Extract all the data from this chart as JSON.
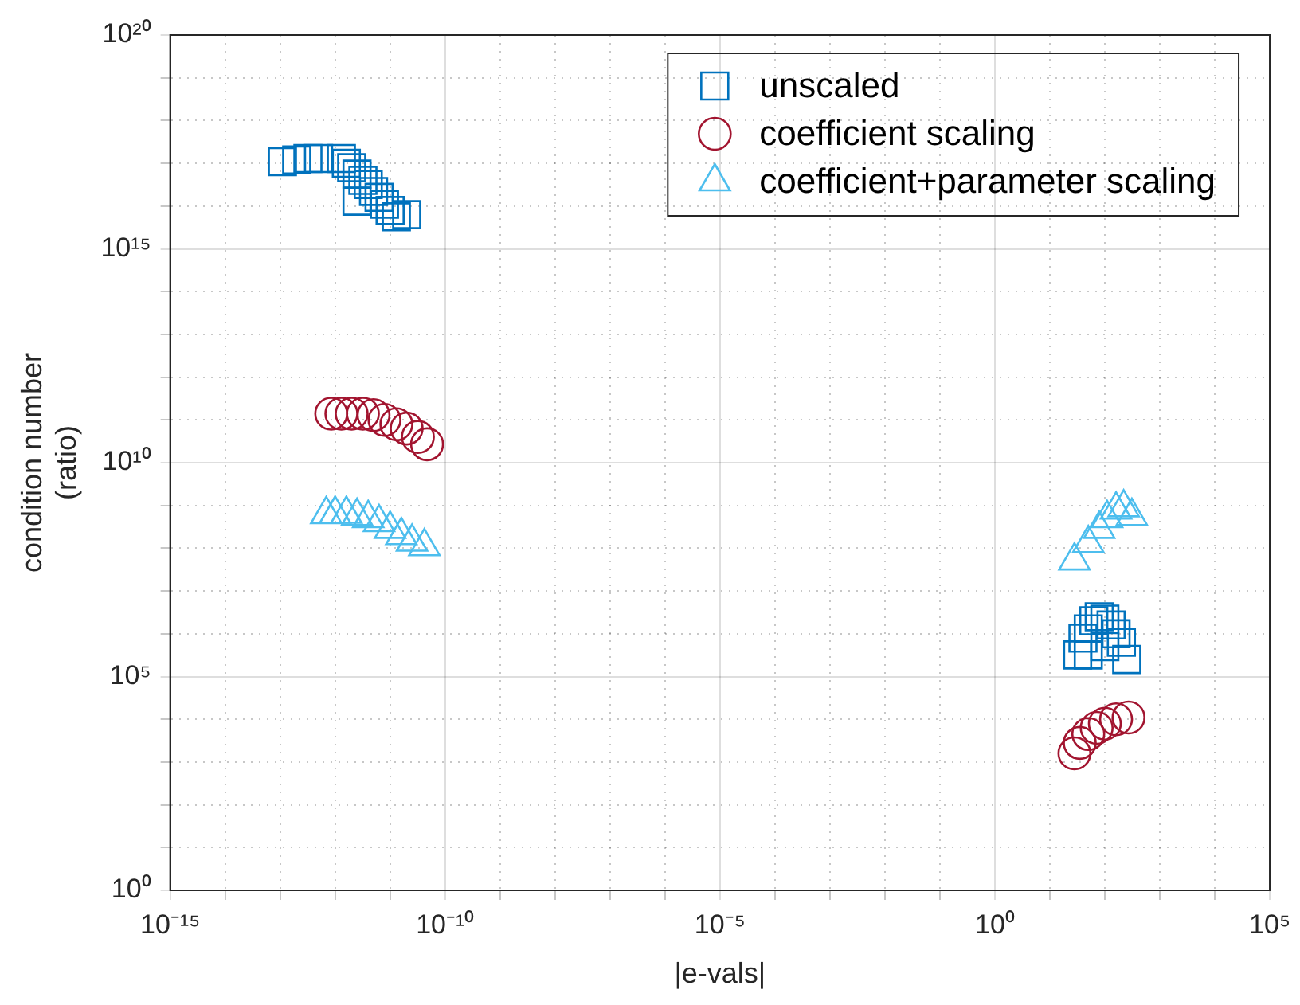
{
  "chart_data": {
    "type": "scatter",
    "xlabel": "|e-vals|",
    "ylabel": "condition number\n(ratio)",
    "log": "xy",
    "grid": true,
    "legend": "top right",
    "xlim": [
      1e-15,
      100000.0
    ],
    "ylim": [
      1,
      1e+20
    ],
    "xticks": [
      {
        "value": 1e-15,
        "label": "10⁻¹⁵"
      },
      {
        "value": 1e-14,
        "label": null
      },
      {
        "value": 1e-13,
        "label": null
      },
      {
        "value": 1e-12,
        "label": null
      },
      {
        "value": 1e-11,
        "label": null
      },
      {
        "value": 1e-10,
        "label": "10⁻¹⁰"
      },
      {
        "value": 1e-09,
        "label": null
      },
      {
        "value": 1e-08,
        "label": null
      },
      {
        "value": 1e-07,
        "label": null
      },
      {
        "value": 1e-06,
        "label": null
      },
      {
        "value": 1e-05,
        "label": "10⁻⁵"
      },
      {
        "value": 0.0001,
        "label": null
      },
      {
        "value": 0.001,
        "label": null
      },
      {
        "value": 0.01,
        "label": null
      },
      {
        "value": 0.1,
        "label": null
      },
      {
        "value": 1,
        "label": "10⁰"
      },
      {
        "value": 10,
        "label": null
      },
      {
        "value": 100,
        "label": null
      },
      {
        "value": 1000,
        "label": null
      },
      {
        "value": 10000,
        "label": null
      },
      {
        "value": 100000,
        "label": "10⁵"
      }
    ],
    "yticks": [
      {
        "value": 1,
        "label": "10⁰"
      },
      {
        "value": 10,
        "label": null
      },
      {
        "value": 100,
        "label": null
      },
      {
        "value": 1000,
        "label": null
      },
      {
        "value": 10000,
        "label": null
      },
      {
        "value": 100000,
        "label": "10⁵"
      },
      {
        "value": 1000000.0,
        "label": null
      },
      {
        "value": 10000000.0,
        "label": null
      },
      {
        "value": 100000000.0,
        "label": null
      },
      {
        "value": 1000000000.0,
        "label": null
      },
      {
        "value": 10000000000.0,
        "label": "10¹⁰"
      },
      {
        "value": 100000000000.0,
        "label": null
      },
      {
        "value": 1000000000000.0,
        "label": null
      },
      {
        "value": 10000000000000.0,
        "label": null
      },
      {
        "value": 100000000000000.0,
        "label": null
      },
      {
        "value": 1000000000000000.0,
        "label": "10¹⁵"
      },
      {
        "value": 1e+16,
        "label": null
      },
      {
        "value": 1e+17,
        "label": null
      },
      {
        "value": 1e+18,
        "label": null
      },
      {
        "value": 1e+19,
        "label": null
      },
      {
        "value": 1e+20,
        "label": "10²⁰"
      }
    ],
    "series": [
      {
        "name": "unscaled",
        "color": "#0072bd",
        "marker": "square",
        "x": [
          1.1e-13,
          2e-13,
          3.2e-13,
          5e-13,
          1.3e-12,
          1.6e-12,
          2e-12,
          2.5e-12,
          3.2e-12,
          4e-12,
          5e-12,
          6.3e-12,
          7.9e-12,
          1e-11,
          1.3e-11,
          2e-11,
          2.5e-12,
          32,
          40,
          50,
          63,
          79,
          100,
          130,
          160,
          200,
          250,
          100,
          50
        ],
        "values": [
          1.1e+17,
          1.2e+17,
          1.3e+17,
          1.3e+17,
          1.3e+17,
          1e+17,
          7.9e+16,
          5.6e+16,
          4e+16,
          3.2e+16,
          2.2e+16,
          1.6e+16,
          1.1e+16,
          7900000000000000.0,
          5600000000000000.0,
          6300000000000000.0,
          1.3e+16,
          320000.0,
          790000.0,
          1300000.0,
          2000000.0,
          2500000.0,
          2200000.0,
          1600000.0,
          1000000.0,
          630000.0,
          250000.0,
          500000.0,
          320000.0
        ]
      },
      {
        "name": "coefficient scaling",
        "color": "#a2142f",
        "marker": "circle",
        "x": [
          8.5e-13,
          1.3e-12,
          2e-12,
          3.2e-12,
          5e-12,
          7.9e-12,
          1.3e-11,
          2e-11,
          3.2e-11,
          4.7e-11,
          28,
          35,
          50,
          71,
          100,
          160,
          270
        ],
        "values": [
          140000000000.0,
          140000000000.0,
          140000000000.0,
          140000000000.0,
          130000000000.0,
          100000000000.0,
          79000000000.0,
          63000000000.0,
          40000000000.0,
          27000000000.0,
          1600.0,
          2800.0,
          4500.0,
          6300.0,
          7900.0,
          10000.0,
          11000.0
        ]
      },
      {
        "name": "coefficient+parameter scaling",
        "color": "#4dbeee",
        "marker": "triangle",
        "x": [
          6.9e-13,
          1e-12,
          1.6e-12,
          2.5e-12,
          4e-12,
          6.3e-12,
          1e-11,
          1.6e-11,
          2.5e-11,
          4.2e-11,
          28,
          50,
          79,
          110,
          160,
          220,
          310
        ],
        "values": [
          620000000.0,
          630000000.0,
          630000000.0,
          560000000.0,
          500000000.0,
          400000000.0,
          280000000.0,
          200000000.0,
          140000000.0,
          110000000.0,
          51000000.0,
          130000000.0,
          280000000.0,
          500000000.0,
          790000000.0,
          890000000.0,
          560000000.0
        ]
      }
    ]
  }
}
